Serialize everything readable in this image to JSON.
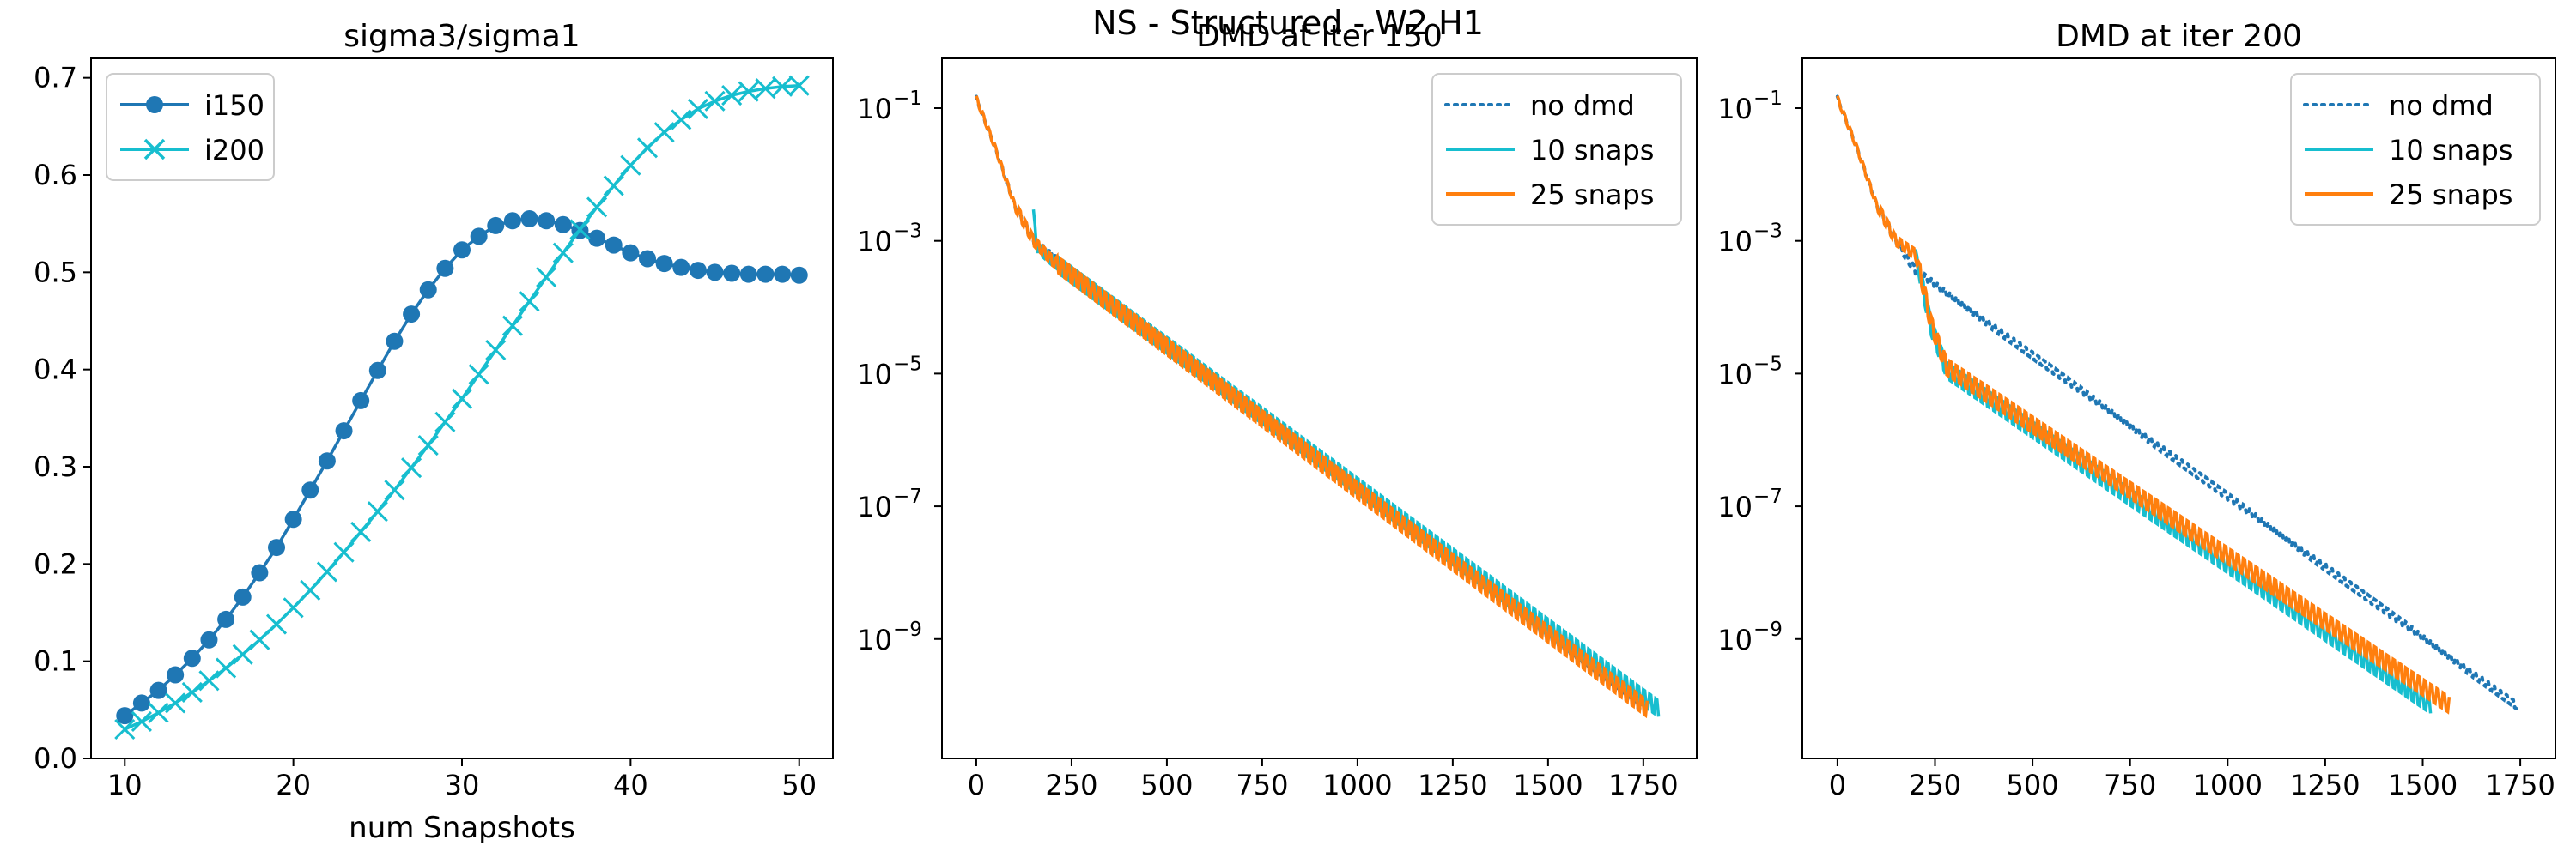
{
  "figure": {
    "suptitle": "NS - Structured - W2 H1"
  },
  "chart_data": [
    {
      "type": "line",
      "title": "sigma3/sigma1",
      "xlabel": "num Snapshots",
      "ylabel": "",
      "xlim": [
        8,
        52
      ],
      "ylim": [
        0,
        0.72
      ],
      "xticks": [
        10,
        20,
        30,
        40,
        50
      ],
      "xtick_labels": [
        "10",
        "20",
        "30",
        "40",
        "50"
      ],
      "yticks": [
        0,
        0.1,
        0.2,
        0.3,
        0.4,
        0.5,
        0.6,
        0.7
      ],
      "ytick_labels": [
        "0.0",
        "0.1",
        "0.2",
        "0.3",
        "0.4",
        "0.5",
        "0.6",
        "0.7"
      ],
      "grid": false,
      "legend_position": "upper-left",
      "x": [
        10,
        11,
        12,
        13,
        14,
        15,
        16,
        17,
        18,
        19,
        20,
        21,
        22,
        23,
        24,
        25,
        26,
        27,
        28,
        29,
        30,
        31,
        32,
        33,
        34,
        35,
        36,
        37,
        38,
        39,
        40,
        41,
        42,
        43,
        44,
        45,
        46,
        47,
        48,
        49,
        50
      ],
      "series": [
        {
          "name": "i150",
          "color": "#1f77b4",
          "marker": "circle",
          "values": [
            0.044,
            0.057,
            0.07,
            0.086,
            0.103,
            0.122,
            0.143,
            0.166,
            0.191,
            0.217,
            0.246,
            0.276,
            0.306,
            0.337,
            0.368,
            0.399,
            0.429,
            0.457,
            0.482,
            0.504,
            0.523,
            0.537,
            0.548,
            0.553,
            0.555,
            0.553,
            0.549,
            0.543,
            0.535,
            0.528,
            0.52,
            0.514,
            0.509,
            0.505,
            0.502,
            0.5,
            0.499,
            0.498,
            0.498,
            0.498,
            0.497
          ]
        },
        {
          "name": "i200",
          "color": "#17becf",
          "marker": "x",
          "values": [
            0.03,
            0.038,
            0.047,
            0.057,
            0.068,
            0.08,
            0.093,
            0.107,
            0.122,
            0.138,
            0.155,
            0.173,
            0.192,
            0.212,
            0.233,
            0.254,
            0.276,
            0.299,
            0.322,
            0.346,
            0.37,
            0.395,
            0.42,
            0.445,
            0.47,
            0.495,
            0.52,
            0.544,
            0.567,
            0.589,
            0.61,
            0.628,
            0.644,
            0.657,
            0.668,
            0.676,
            0.682,
            0.686,
            0.689,
            0.691,
            0.692
          ]
        }
      ]
    },
    {
      "type": "line",
      "title": "DMD at iter 150",
      "xlabel": "",
      "ylabel": "",
      "yscale": "log",
      "xlim": [
        -90,
        1890
      ],
      "ylim_log10": [
        -10.8,
        -0.25
      ],
      "xticks": [
        0,
        250,
        500,
        750,
        1000,
        1250,
        1500,
        1750
      ],
      "xtick_labels": [
        "0",
        "250",
        "500",
        "750",
        "1000",
        "1250",
        "1500",
        "1750"
      ],
      "yticks_log10": [
        -9,
        -7,
        -5,
        -3,
        -1
      ],
      "ytick_labels": [
        "10",
        "10",
        "10",
        "10",
        "10"
      ],
      "ytick_exponents": [
        "−9",
        "−7",
        "−5",
        "−3",
        "−1"
      ],
      "grid": false,
      "legend_position": "upper-right",
      "series": [
        {
          "name": "no dmd",
          "color": "#1f77b4",
          "style": "dotted",
          "x": [
            0,
            50,
            100,
            150,
            1750
          ],
          "log10_values": [
            -0.85,
            -1.6,
            -2.45,
            -3.0,
            -10.05
          ],
          "oscillation": 0.05
        },
        {
          "name": "10 snaps",
          "color": "#17becf",
          "style": "solid",
          "x": [
            150,
            156,
            160,
            200,
            1790
          ],
          "log10_values": [
            -2.6,
            -2.95,
            -3.1,
            -3.3,
            -10.05
          ],
          "oscillation": 0.12
        },
        {
          "name": "25 snaps",
          "color": "#ff7f0e",
          "style": "solid",
          "x": [
            0,
            50,
            100,
            150,
            200,
            1760
          ],
          "log10_values": [
            -0.85,
            -1.6,
            -2.45,
            -3.0,
            -3.3,
            -10.05
          ],
          "oscillation": 0.12
        }
      ]
    },
    {
      "type": "line",
      "title": "DMD at iter 200",
      "xlabel": "",
      "ylabel": "",
      "yscale": "log",
      "xlim": [
        -90,
        1840
      ],
      "ylim_log10": [
        -10.8,
        -0.25
      ],
      "xticks": [
        0,
        250,
        500,
        750,
        1000,
        1250,
        1500,
        1750
      ],
      "xtick_labels": [
        "0",
        "250",
        "500",
        "750",
        "1000",
        "1250",
        "1500",
        "1750"
      ],
      "yticks_log10": [
        -9,
        -7,
        -5,
        -3,
        -1
      ],
      "ytick_labels": [
        "10",
        "10",
        "10",
        "10",
        "10"
      ],
      "ytick_exponents": [
        "−9",
        "−7",
        "−5",
        "−3",
        "−1"
      ],
      "grid": false,
      "legend_position": "upper-right",
      "series": [
        {
          "name": "no dmd",
          "color": "#1f77b4",
          "style": "dotted",
          "x": [
            0,
            50,
            100,
            150,
            200,
            1740
          ],
          "log10_values": [
            -0.85,
            -1.6,
            -2.45,
            -3.0,
            -3.45,
            -10.0
          ],
          "oscillation": 0.05
        },
        {
          "name": "10 snaps",
          "color": "#17becf",
          "style": "solid",
          "x": [
            200,
            215,
            240,
            280,
            1520
          ],
          "log10_values": [
            -3.2,
            -3.6,
            -4.3,
            -4.95,
            -10.0
          ],
          "oscillation": 0.12
        },
        {
          "name": "25 snaps",
          "color": "#ff7f0e",
          "style": "solid",
          "x": [
            0,
            50,
            100,
            150,
            200,
            215,
            240,
            280,
            1570
          ],
          "log10_values": [
            -0.85,
            -1.6,
            -2.45,
            -3.0,
            -3.2,
            -3.55,
            -4.25,
            -4.9,
            -10.0
          ],
          "oscillation": 0.12
        }
      ]
    }
  ]
}
